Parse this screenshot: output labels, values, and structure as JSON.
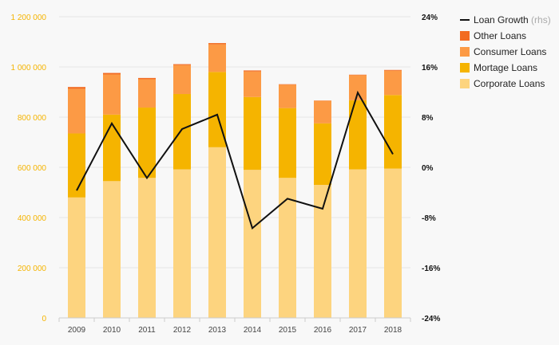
{
  "chart_data": {
    "type": "bar",
    "stacked": true,
    "categories": [
      "2009",
      "2010",
      "2011",
      "2012",
      "2013",
      "2014",
      "2015",
      "2016",
      "2017",
      "2018"
    ],
    "series": [
      {
        "name": "Corporate Loans",
        "color": "#fdd47f",
        "values": [
          480000,
          545000,
          558000,
          592000,
          680000,
          590000,
          558000,
          530000,
          592000,
          595000
        ]
      },
      {
        "name": "Mortage Loans",
        "color": "#f5b400",
        "values": [
          255000,
          265000,
          280000,
          300000,
          300000,
          290000,
          278000,
          245000,
          275000,
          293000
        ]
      },
      {
        "name": "Consumer Loans",
        "color": "#fc9a45",
        "values": [
          178000,
          160000,
          113000,
          115000,
          110000,
          102000,
          93000,
          90000,
          100000,
          97000
        ]
      },
      {
        "name": "Other Loans",
        "color": "#f26b21",
        "values": [
          7000,
          6000,
          5000,
          4000,
          5000,
          4000,
          2000,
          1000,
          2000,
          3000
        ]
      }
    ],
    "line": {
      "name": "Loan Growth",
      "note": "(rhs)",
      "color": "#111111",
      "values": [
        -3.7,
        7.0,
        -1.7,
        6.1,
        8.4,
        -9.7,
        -5.0,
        -6.6,
        11.9,
        2.1
      ]
    },
    "y_left": {
      "min": 0,
      "max": 1200000,
      "ticks": [
        "0",
        "200 000",
        "400 000",
        "600 000",
        "800 000",
        "1 000 000",
        "1 200 000"
      ],
      "color": "#f5b400"
    },
    "y_right": {
      "min": -24,
      "max": 24,
      "ticks": [
        "-24%",
        "-16%",
        "-8%",
        "0%",
        "8%",
        "16%",
        "24%"
      ]
    },
    "legend": [
      {
        "label": "Loan Growth",
        "note": "(rhs)",
        "kind": "line",
        "color": "#111111"
      },
      {
        "label": "Other Loans",
        "kind": "box",
        "color": "#f26b21"
      },
      {
        "label": "Consumer Loans",
        "kind": "box",
        "color": "#fc9a45"
      },
      {
        "label": "Mortage Loans",
        "kind": "box",
        "color": "#f5b400"
      },
      {
        "label": "Corporate Loans",
        "kind": "box",
        "color": "#fdd47f"
      }
    ],
    "legend_position": "top-right",
    "grid": true
  }
}
